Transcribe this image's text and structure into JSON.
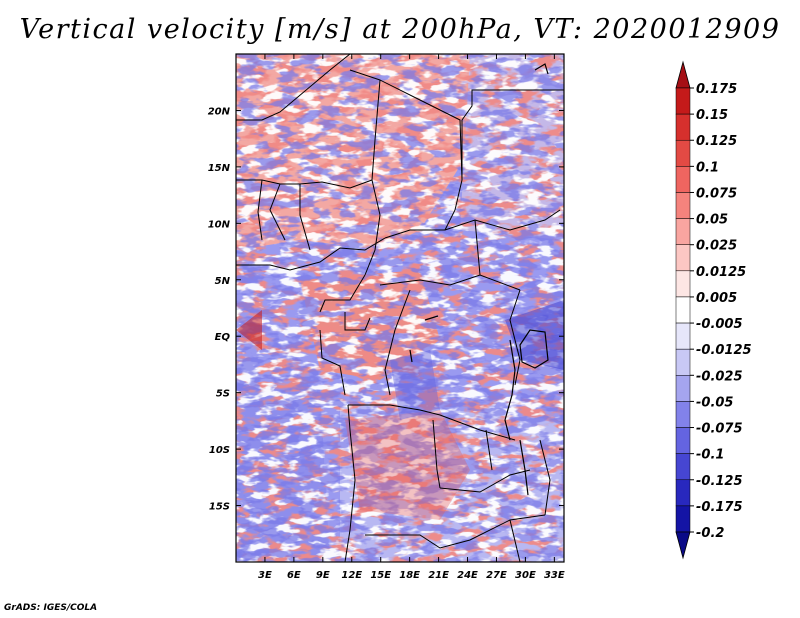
{
  "title": "Vertical velocity [m/s] at 200hPa, VT: 2020012909",
  "credit": "GrADS: IGES/COLA",
  "chart_data": {
    "type": "heatmap",
    "variable": "Vertical velocity",
    "units": "m/s",
    "level": "200hPa",
    "valid_time": "2020012909",
    "lon_range": [
      0,
      34
    ],
    "lat_range": [
      -20,
      25
    ],
    "x_ticks": [
      {
        "value": 3,
        "label": "3E"
      },
      {
        "value": 6,
        "label": "6E"
      },
      {
        "value": 9,
        "label": "9E"
      },
      {
        "value": 12,
        "label": "12E"
      },
      {
        "value": 15,
        "label": "15E"
      },
      {
        "value": 18,
        "label": "18E"
      },
      {
        "value": 21,
        "label": "21E"
      },
      {
        "value": 24,
        "label": "24E"
      },
      {
        "value": 27,
        "label": "27E"
      },
      {
        "value": 30,
        "label": "30E"
      },
      {
        "value": 33,
        "label": "33E"
      }
    ],
    "y_ticks": [
      {
        "value": 20,
        "label": "20N"
      },
      {
        "value": 15,
        "label": "15N"
      },
      {
        "value": 10,
        "label": "10N"
      },
      {
        "value": 5,
        "label": "5N"
      },
      {
        "value": 0,
        "label": "EQ"
      },
      {
        "value": -5,
        "label": "5S"
      },
      {
        "value": -10,
        "label": "10S"
      },
      {
        "value": -15,
        "label": "15S"
      }
    ],
    "colorbar": {
      "labels": [
        "0.175",
        "0.15",
        "0.125",
        "0.1",
        "0.075",
        "0.05",
        "0.025",
        "0.0125",
        "0.005",
        "-0.005",
        "-0.0125",
        "-0.025",
        "-0.05",
        "-0.075",
        "-0.1",
        "-0.125",
        "-0.175",
        "-0.2"
      ],
      "colors": [
        "#a50f15",
        "#c41a1a",
        "#d6302d",
        "#e34a44",
        "#ef6560",
        "#f5837d",
        "#f9a5a0",
        "#fcc7c3",
        "#fde6e4",
        "#ffffff",
        "#e6e6fa",
        "#c8c8f5",
        "#a5a5ef",
        "#8282ea",
        "#6464e1",
        "#4646d2",
        "#2828be",
        "#1414a5",
        "#0a0a87"
      ]
    }
  }
}
